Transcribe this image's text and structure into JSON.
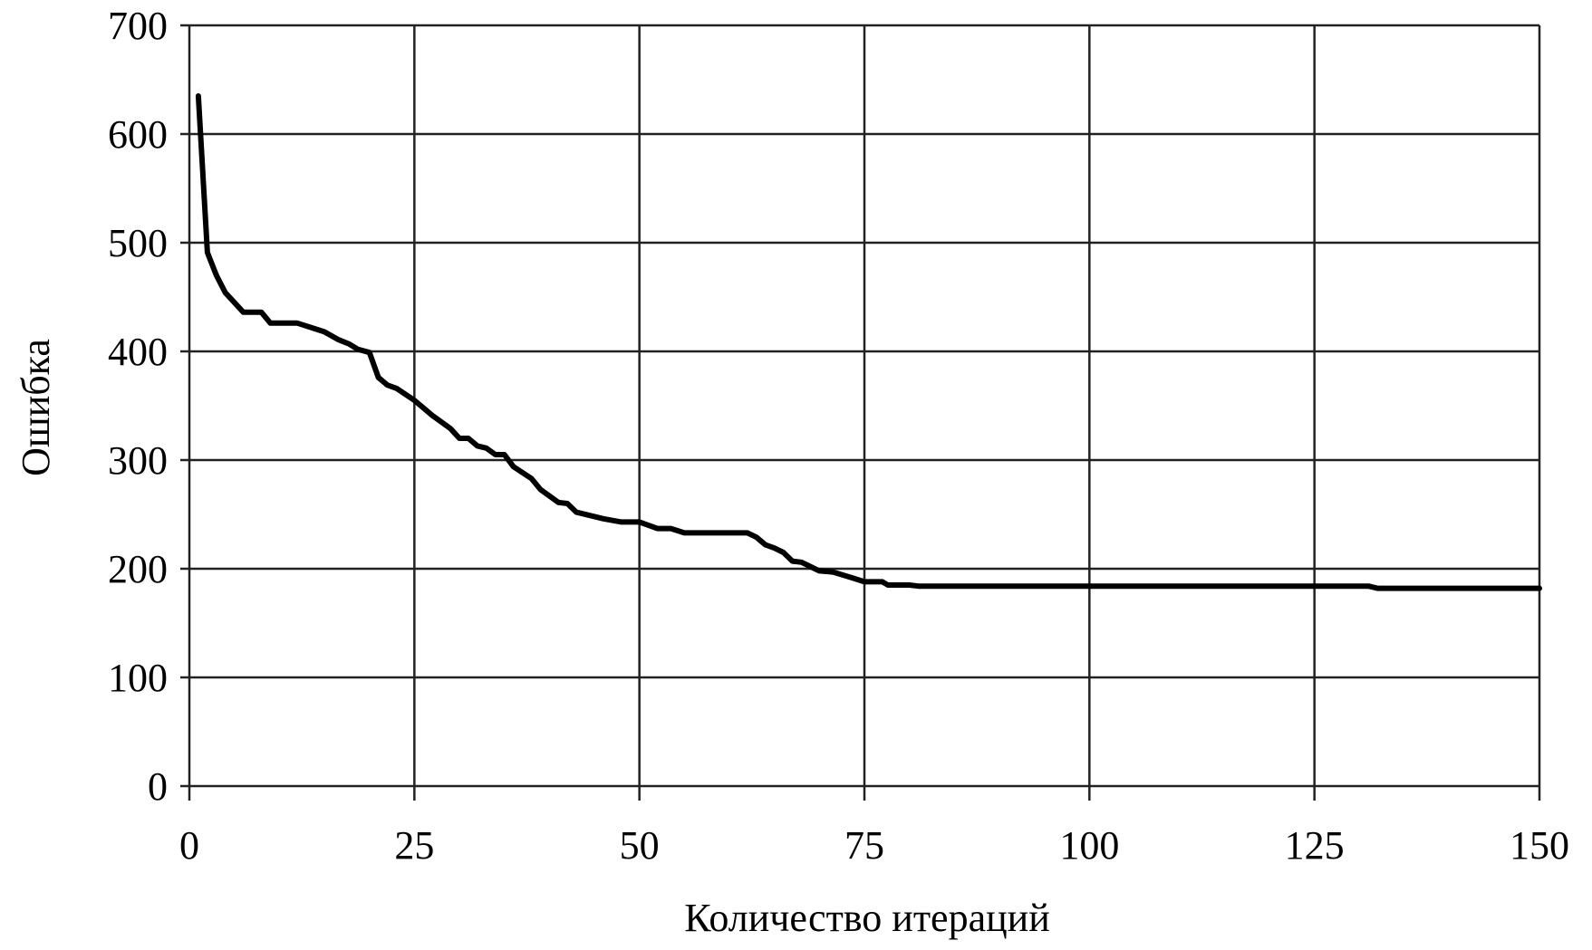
{
  "chart_data": {
    "type": "line",
    "title": "",
    "xlabel": "Количество итераций",
    "ylabel": "Ошибка",
    "xlim": [
      0,
      150
    ],
    "ylim": [
      0,
      700
    ],
    "xticks": [
      0,
      25,
      50,
      75,
      100,
      125,
      150
    ],
    "yticks": [
      0,
      100,
      200,
      300,
      400,
      500,
      600,
      700
    ],
    "grid": true,
    "legend": "none",
    "line_color": "#000000",
    "series": [
      {
        "x": [
          1,
          2,
          3,
          4,
          6,
          8,
          9,
          12,
          15,
          16.5,
          17.7,
          18.7,
          20,
          21,
          22,
          23,
          25,
          27,
          29,
          30,
          31,
          32,
          33,
          34,
          35,
          36,
          38,
          39,
          41,
          42,
          43,
          46,
          48,
          50,
          52,
          53.5,
          55,
          62,
          63,
          64,
          65,
          66,
          67,
          68,
          70,
          71.5,
          73.5,
          75,
          77,
          77.6,
          80,
          81,
          131,
          132,
          150
        ],
        "y": [
          635,
          491,
          470,
          454,
          436,
          436,
          426,
          426,
          418,
          411,
          407,
          402,
          399,
          376,
          369,
          366,
          355,
          341,
          329,
          320,
          320,
          313,
          311,
          305,
          305,
          294,
          283,
          273,
          261,
          260,
          252,
          246,
          243,
          243,
          237,
          237,
          233,
          233,
          229,
          222,
          219,
          215,
          207,
          206,
          198,
          197,
          192,
          188,
          188,
          185,
          185,
          184,
          184,
          182,
          182
        ]
      }
    ]
  }
}
